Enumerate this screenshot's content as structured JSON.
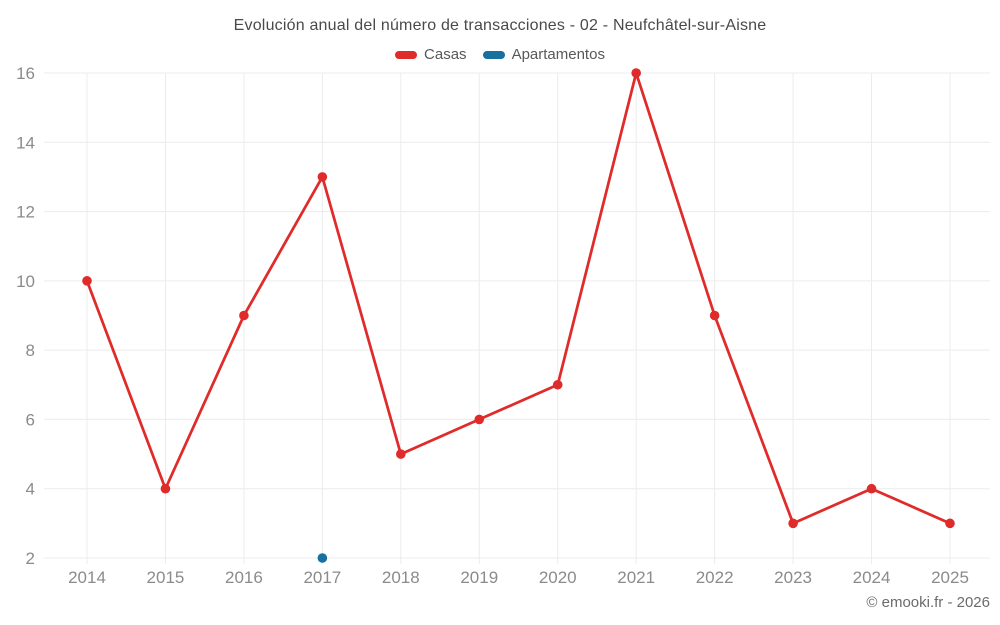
{
  "footer": {
    "copyright": "© emooki.fr - 2026"
  },
  "chart_data": {
    "type": "line",
    "title": "Evolución anual del número de transacciones - 02 - Neufchâtel-sur-Aisne",
    "x": [
      "2014",
      "2015",
      "2016",
      "2017",
      "2018",
      "2019",
      "2020",
      "2021",
      "2022",
      "2023",
      "2024",
      "2025"
    ],
    "series": [
      {
        "name": "Casas",
        "color": "#e02b2b",
        "values": [
          10,
          4,
          9,
          13,
          5,
          6,
          7,
          16,
          9,
          3,
          4,
          3
        ]
      },
      {
        "name": "Apartamentos",
        "color": "#17709d",
        "values": [
          null,
          null,
          null,
          2,
          null,
          null,
          null,
          null,
          null,
          null,
          null,
          null
        ]
      }
    ],
    "xlabel": "",
    "ylabel": "",
    "ylim": [
      2,
      16
    ],
    "yticks": [
      2,
      4,
      6,
      8,
      10,
      12,
      14,
      16
    ],
    "grid": true,
    "legend_position": "top"
  }
}
